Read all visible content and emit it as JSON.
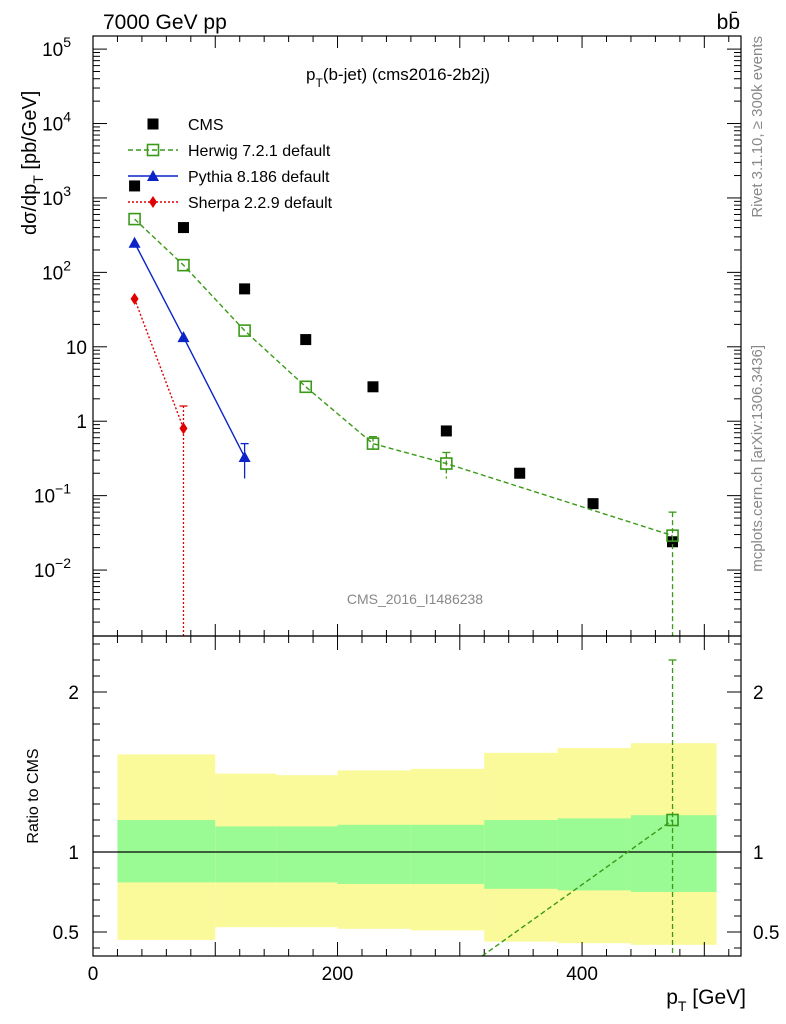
{
  "header": {
    "energy_label": "7000 GeV pp",
    "process_label": "bb̄"
  },
  "side_labels": {
    "rivet": "Rivet 3.1.10, ≥ 300k events",
    "mcplots": "mcplots.cern.ch [arXiv:1306.3436]"
  },
  "chart_data": [
    {
      "type": "scatter",
      "title": "p_T(b-jet) (cms2016-2b2j)",
      "title_main": "p",
      "title_sub": "T",
      "title_rest": "(b-jet) (cms2016-2b2j)",
      "ylabel_main": "dσ/dp",
      "ylabel_sub": "T",
      "ylabel_unit": " [pb/GeV]",
      "yscale": "log",
      "xlim": [
        0,
        530
      ],
      "ylim": [
        0.0013,
        150000
      ],
      "watermark": "CMS_2016_I1486238",
      "y_ticks": [
        {
          "v": 0.01,
          "base": "10",
          "exp": "−2"
        },
        {
          "v": 0.1,
          "base": "10",
          "exp": "−1"
        },
        {
          "v": 1,
          "base": "1",
          "exp": ""
        },
        {
          "v": 10,
          "base": "10",
          "exp": ""
        },
        {
          "v": 100,
          "base": "10",
          "exp": "2"
        },
        {
          "v": 1000,
          "base": "10",
          "exp": "3"
        },
        {
          "v": 10000,
          "base": "10",
          "exp": "4"
        },
        {
          "v": 100000,
          "base": "10",
          "exp": "5"
        }
      ],
      "legend_position": "top-left",
      "series": [
        {
          "name": "CMS",
          "color": "#000000",
          "marker": "square",
          "line": "none",
          "x": [
            34,
            74,
            124,
            174,
            229,
            289,
            349,
            409,
            474
          ],
          "y": [
            1450,
            400,
            60,
            12.5,
            2.9,
            0.74,
            0.2,
            0.078,
            0.024
          ]
        },
        {
          "name": "Herwig 7.2.1 default",
          "color": "#3a9a18",
          "marker": "open-square",
          "line": "dashed",
          "x": [
            34,
            74,
            124,
            174,
            229,
            289,
            474
          ],
          "y": [
            520,
            125,
            16.5,
            2.9,
            0.5,
            0.27,
            0.029
          ],
          "err_low": [
            0,
            0,
            0,
            0,
            0.38,
            0.17,
            0
          ],
          "err_high": [
            0,
            0,
            0,
            0,
            0.62,
            0.38,
            0.06
          ]
        },
        {
          "name": "Pythia 8.186 default",
          "color": "#0a24c8",
          "marker": "triangle",
          "line": "solid",
          "x": [
            34,
            74,
            124
          ],
          "y": [
            250,
            13.5,
            0.33
          ],
          "err_low": [
            0,
            0,
            0.17
          ],
          "err_high": [
            0,
            0,
            0.5
          ]
        },
        {
          "name": "Sherpa 2.2.9 default",
          "color": "#e00000",
          "marker": "diamond",
          "line": "dotted",
          "x": [
            34,
            74
          ],
          "y": [
            44,
            0.8
          ],
          "err_low": [
            0,
            0.0001
          ],
          "err_high": [
            0,
            1.6
          ]
        }
      ]
    },
    {
      "type": "area",
      "ylabel": "Ratio to CMS",
      "xlabel_main": "p",
      "xlabel_sub": "T",
      "xlabel_unit": " [GeV]",
      "xlim": [
        0,
        530
      ],
      "ylim": [
        0.35,
        2.35
      ],
      "x_ticks": [
        0,
        200,
        400
      ],
      "y_ticks": [
        0.5,
        1,
        2
      ],
      "reference_line": 1,
      "bands": [
        {
          "x0": 20,
          "x1": 100,
          "inner_low": 0.81,
          "inner_high": 1.2,
          "outer_low": 0.45,
          "outer_high": 1.61
        },
        {
          "x0": 100,
          "x1": 150,
          "inner_low": 0.81,
          "inner_high": 1.16,
          "outer_low": 0.53,
          "outer_high": 1.49
        },
        {
          "x0": 150,
          "x1": 200,
          "inner_low": 0.81,
          "inner_high": 1.16,
          "outer_low": 0.53,
          "outer_high": 1.48
        },
        {
          "x0": 200,
          "x1": 260,
          "inner_low": 0.8,
          "inner_high": 1.17,
          "outer_low": 0.52,
          "outer_high": 1.51
        },
        {
          "x0": 260,
          "x1": 320,
          "inner_low": 0.8,
          "inner_high": 1.17,
          "outer_low": 0.51,
          "outer_high": 1.52
        },
        {
          "x0": 320,
          "x1": 380,
          "inner_low": 0.77,
          "inner_high": 1.2,
          "outer_low": 0.44,
          "outer_high": 1.62
        },
        {
          "x0": 380,
          "x1": 440,
          "inner_low": 0.76,
          "inner_high": 1.21,
          "outer_low": 0.43,
          "outer_high": 1.65
        },
        {
          "x0": 440,
          "x1": 510,
          "inner_low": 0.75,
          "inner_high": 1.23,
          "outer_low": 0.42,
          "outer_high": 1.68
        }
      ],
      "band_colors": {
        "inner": "#9afa94",
        "outer": "#fafa9a"
      },
      "series": [
        {
          "name": "Herwig 7.2.1 default",
          "color": "#3a9a18",
          "x": [
            300,
            474
          ],
          "y": [
            0.25,
            1.2
          ],
          "err_high_at_last": 2.2
        }
      ]
    }
  ]
}
